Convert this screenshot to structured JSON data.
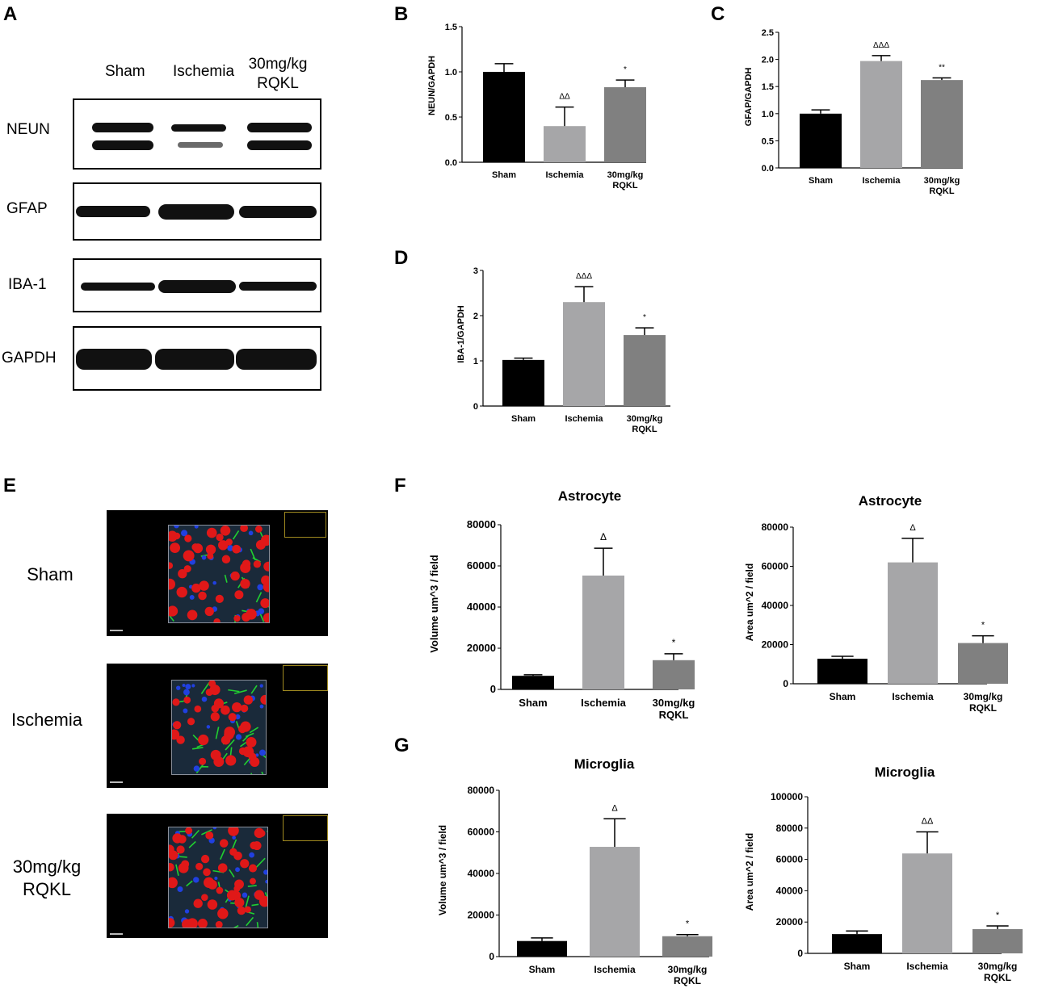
{
  "panel_letters": {
    "a": "A",
    "b": "B",
    "c": "C",
    "d": "D",
    "e": "E",
    "f": "F",
    "g": "G"
  },
  "western_blot": {
    "lanes": [
      "Sham",
      "Ischemia",
      "30mg/kg\nRQKL"
    ],
    "rows": [
      "NEUN",
      "GFAP",
      "IBA-1",
      "GAPDH"
    ]
  },
  "immunofluorescence": {
    "rows": [
      "Sham",
      "Ischemia",
      "30mg/kg\nRQKL"
    ]
  },
  "colors": {
    "sham": "#000000",
    "ischemia": "#a6a6a8",
    "rqkl": "#808080",
    "if_red": "#e01818",
    "if_green": "#20d030",
    "if_blue": "#2040e0"
  },
  "chart_data": [
    {
      "id": "B",
      "type": "bar",
      "title": "",
      "xlabel": "",
      "ylabel": "NEUN/GAPDH",
      "categories": [
        "Sham",
        "Ischemia",
        "30mg/kg\nRQKL"
      ],
      "values": [
        1.0,
        0.4,
        0.83
      ],
      "errors": [
        0.09,
        0.21,
        0.08
      ],
      "annotations": [
        "",
        "ΔΔ",
        "*"
      ],
      "ylim": [
        0,
        1.5
      ],
      "yticks": [
        "0.0",
        "0.5",
        "1.0",
        "1.5"
      ]
    },
    {
      "id": "C",
      "type": "bar",
      "title": "",
      "xlabel": "",
      "ylabel": "GFAP/GAPDH",
      "categories": [
        "Sham",
        "Ischemia",
        "30mg/kg\nRQKL"
      ],
      "values": [
        1.0,
        1.97,
        1.62
      ],
      "errors": [
        0.07,
        0.1,
        0.04
      ],
      "annotations": [
        "",
        "ΔΔΔ",
        "**"
      ],
      "ylim": [
        0,
        2.5
      ],
      "yticks": [
        "0.0",
        "0.5",
        "1.0",
        "1.5",
        "2.0",
        "2.5"
      ]
    },
    {
      "id": "D",
      "type": "bar",
      "title": "",
      "xlabel": "",
      "ylabel": "IBA-1/GAPDH",
      "categories": [
        "Sham",
        "Ischemia",
        "30mg/kg\nRQKL"
      ],
      "values": [
        1.02,
        2.3,
        1.57
      ],
      "errors": [
        0.04,
        0.34,
        0.16
      ],
      "annotations": [
        "",
        "ΔΔΔ",
        "*"
      ],
      "ylim": [
        0,
        3
      ],
      "yticks": [
        "0",
        "1",
        "2",
        "3"
      ]
    },
    {
      "id": "F1",
      "type": "bar",
      "title": "Astrocyte",
      "xlabel": "",
      "ylabel": "Volume um^3 / field",
      "categories": [
        "Sham",
        "Ischemia",
        "30mg/kg\nRQKL"
      ],
      "values": [
        6600,
        55300,
        14200
      ],
      "errors": [
        500,
        13300,
        3100
      ],
      "annotations": [
        "",
        "Δ",
        "*"
      ],
      "ylim": [
        0,
        80000
      ],
      "yticks": [
        "0",
        "20000",
        "40000",
        "60000",
        "80000"
      ]
    },
    {
      "id": "F2",
      "type": "bar",
      "title": "Astrocyte",
      "xlabel": "",
      "ylabel": "Area um^2 / field",
      "categories": [
        "Sham",
        "Ischemia",
        "30mg/kg\nRQKL"
      ],
      "values": [
        12800,
        62000,
        20800
      ],
      "errors": [
        1200,
        12300,
        3700
      ],
      "annotations": [
        "",
        "Δ",
        "*"
      ],
      "ylim": [
        0,
        80000
      ],
      "yticks": [
        "0",
        "20000",
        "40000",
        "60000",
        "80000"
      ]
    },
    {
      "id": "G1",
      "type": "bar",
      "title": "Microglia",
      "xlabel": "",
      "ylabel": "Volume um^3 / field",
      "categories": [
        "Sham",
        "Ischemia",
        "30mg/kg\nRQKL"
      ],
      "values": [
        7500,
        52800,
        9800
      ],
      "errors": [
        1500,
        13500,
        800
      ],
      "annotations": [
        "",
        "Δ",
        "*"
      ],
      "ylim": [
        0,
        80000
      ],
      "yticks": [
        "0",
        "20000",
        "40000",
        "60000",
        "80000"
      ]
    },
    {
      "id": "G2",
      "type": "bar",
      "title": "Microglia",
      "xlabel": "",
      "ylabel": "Area um^2 / field",
      "categories": [
        "Sham",
        "Ischemia",
        "30mg/kg\nRQKL"
      ],
      "values": [
        12300,
        63800,
        15500
      ],
      "errors": [
        2000,
        13800,
        2000
      ],
      "annotations": [
        "",
        "ΔΔ",
        "*"
      ],
      "ylim": [
        0,
        100000
      ],
      "yticks": [
        "0",
        "20000",
        "40000",
        "60000",
        "80000",
        "100000"
      ]
    }
  ]
}
